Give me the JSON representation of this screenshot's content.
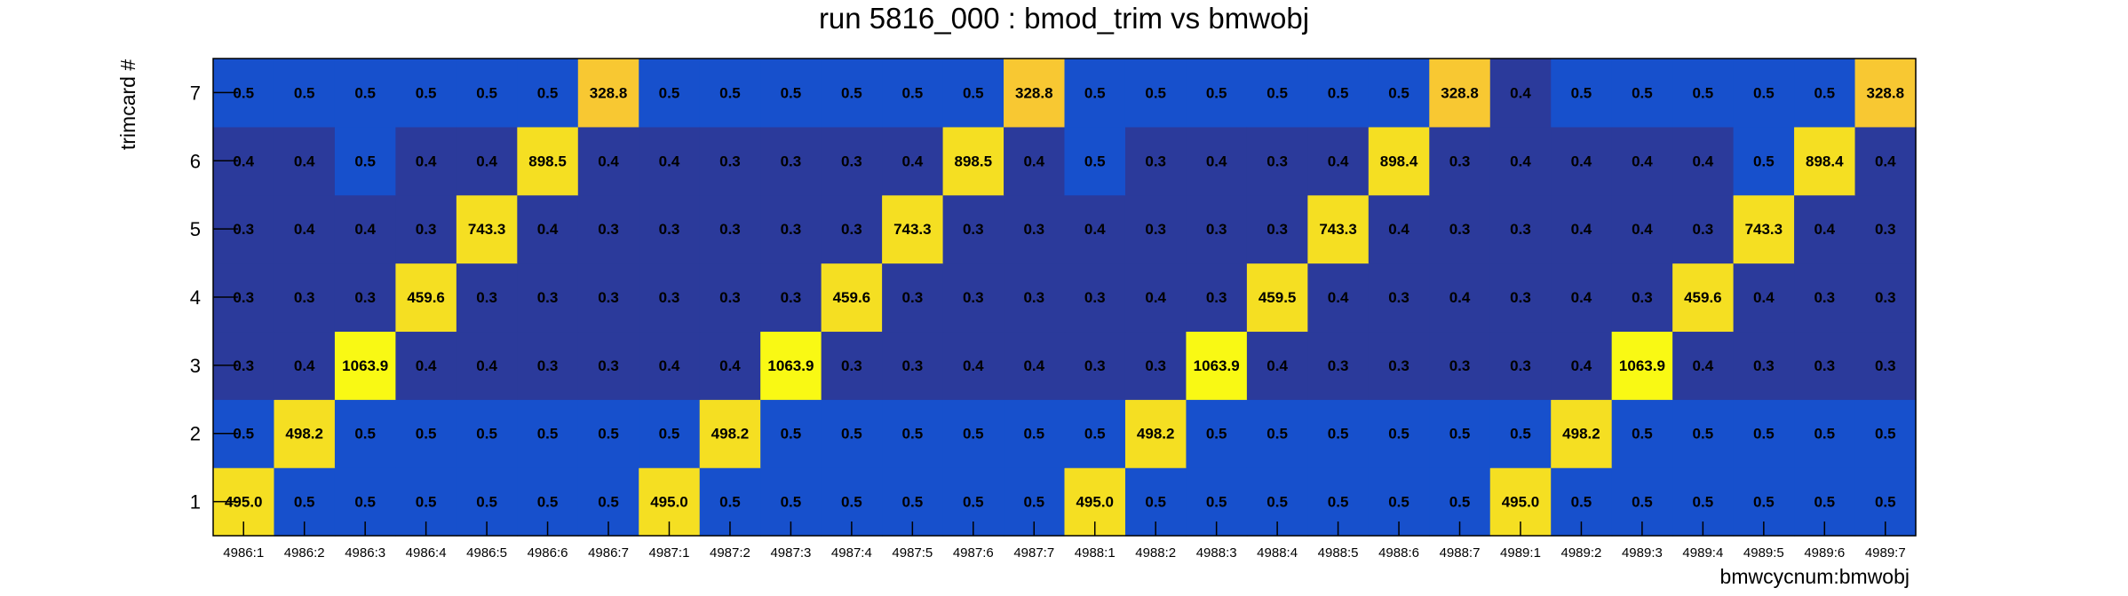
{
  "chart_data": {
    "type": "heatmap",
    "title": "run 5816_000 : bmod_trim vs bmwobj",
    "xlabel": "bmwcycnum:bmwobj",
    "ylabel": "trimcard #",
    "x_categories": [
      "4986:1",
      "4986:2",
      "4986:3",
      "4986:4",
      "4986:5",
      "4986:6",
      "4986:7",
      "4987:1",
      "4987:2",
      "4987:3",
      "4987:4",
      "4987:5",
      "4987:6",
      "4987:7",
      "4988:1",
      "4988:2",
      "4988:3",
      "4988:4",
      "4988:5",
      "4988:6",
      "4988:7",
      "4989:1",
      "4989:2",
      "4989:3",
      "4989:4",
      "4989:5",
      "4989:6",
      "4989:7"
    ],
    "y_categories": [
      "1",
      "2",
      "3",
      "4",
      "5",
      "6",
      "7"
    ],
    "value_labels": [
      [
        "495.0",
        "0.5",
        "0.5",
        "0.5",
        "0.5",
        "0.5",
        "0.5",
        "495.0",
        "0.5",
        "0.5",
        "0.5",
        "0.5",
        "0.5",
        "0.5",
        "495.0",
        "0.5",
        "0.5",
        "0.5",
        "0.5",
        "0.5",
        "0.5",
        "495.0",
        "0.5",
        "0.5",
        "0.5",
        "0.5",
        "0.5",
        "0.5"
      ],
      [
        "0.5",
        "498.2",
        "0.5",
        "0.5",
        "0.5",
        "0.5",
        "0.5",
        "0.5",
        "498.2",
        "0.5",
        "0.5",
        "0.5",
        "0.5",
        "0.5",
        "0.5",
        "498.2",
        "0.5",
        "0.5",
        "0.5",
        "0.5",
        "0.5",
        "0.5",
        "498.2",
        "0.5",
        "0.5",
        "0.5",
        "0.5",
        "0.5"
      ],
      [
        "0.3",
        "0.4",
        "1063.9",
        "0.4",
        "0.4",
        "0.3",
        "0.3",
        "0.4",
        "0.4",
        "1063.9",
        "0.3",
        "0.3",
        "0.4",
        "0.4",
        "0.3",
        "0.3",
        "1063.9",
        "0.4",
        "0.3",
        "0.3",
        "0.3",
        "0.3",
        "0.4",
        "1063.9",
        "0.4",
        "0.3",
        "0.3",
        "0.3"
      ],
      [
        "0.3",
        "0.3",
        "0.3",
        "459.6",
        "0.3",
        "0.3",
        "0.3",
        "0.3",
        "0.3",
        "0.3",
        "459.6",
        "0.3",
        "0.3",
        "0.3",
        "0.3",
        "0.4",
        "0.3",
        "459.5",
        "0.4",
        "0.3",
        "0.4",
        "0.3",
        "0.4",
        "0.3",
        "459.6",
        "0.4",
        "0.3",
        "0.3"
      ],
      [
        "0.3",
        "0.4",
        "0.4",
        "0.3",
        "743.3",
        "0.4",
        "0.3",
        "0.3",
        "0.3",
        "0.3",
        "0.3",
        "743.3",
        "0.3",
        "0.3",
        "0.4",
        "0.3",
        "0.3",
        "0.3",
        "743.3",
        "0.4",
        "0.3",
        "0.3",
        "0.4",
        "0.4",
        "0.3",
        "743.3",
        "0.4",
        "0.3"
      ],
      [
        "0.4",
        "0.4",
        "0.5",
        "0.4",
        "0.4",
        "898.5",
        "0.4",
        "0.4",
        "0.3",
        "0.3",
        "0.3",
        "0.4",
        "898.5",
        "0.4",
        "0.5",
        "0.3",
        "0.4",
        "0.3",
        "0.4",
        "898.4",
        "0.3",
        "0.4",
        "0.4",
        "0.4",
        "0.4",
        "0.5",
        "898.4",
        "0.4"
      ],
      [
        "0.5",
        "0.5",
        "0.5",
        "0.5",
        "0.5",
        "0.5",
        "328.8",
        "0.5",
        "0.5",
        "0.5",
        "0.5",
        "0.5",
        "0.5",
        "328.8",
        "0.5",
        "0.5",
        "0.5",
        "0.5",
        "0.5",
        "0.5",
        "328.8",
        "0.4",
        "0.5",
        "0.5",
        "0.5",
        "0.5",
        "0.5",
        "328.8"
      ]
    ]
  },
  "colors": {
    "low": "#2b3a9b",
    "mid": "#1750cc",
    "peak_high": "#f9f914",
    "peak_mid": "#f5df22",
    "peak_low": "#f8c832",
    "frame": "#000000",
    "text": "#000000"
  }
}
